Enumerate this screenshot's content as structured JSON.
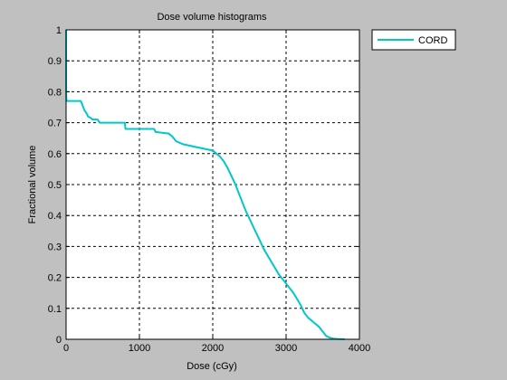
{
  "chart_data": {
    "type": "line",
    "title": "Dose volume histograms",
    "xlabel": "Dose (cGy)",
    "ylabel": "Fractional volume",
    "xlim": [
      0,
      4000
    ],
    "ylim": [
      0,
      1
    ],
    "xticks": [
      0,
      1000,
      2000,
      3000,
      4000
    ],
    "yticks": [
      0,
      0.1,
      0.2,
      0.3,
      0.4,
      0.5,
      0.6,
      0.7,
      0.8,
      0.9,
      1
    ],
    "xtick_labels": [
      "0",
      "1000",
      "2000",
      "3000",
      "4000"
    ],
    "ytick_labels": [
      "0",
      "0.1",
      "0.2",
      "0.3",
      "0.4",
      "0.5",
      "0.6",
      "0.7",
      "0.8",
      "0.9",
      "1"
    ],
    "grid": true,
    "grid_style": "dashed",
    "legend_position": "outside-top-right",
    "series": [
      {
        "name": "CORD",
        "color": "#00c8c8",
        "x": [
          0,
          0,
          0,
          5,
          200,
          210,
          250,
          280,
          300,
          340,
          360,
          390,
          430,
          460,
          800,
          810,
          1200,
          1220,
          1400,
          1450,
          1500,
          1600,
          1800,
          2000,
          2050,
          2100,
          2150,
          2200,
          2250,
          2300,
          2350,
          2400,
          2450,
          2500,
          2600,
          2700,
          2800,
          2900,
          3000,
          3050,
          3100,
          3150,
          3200,
          3250,
          3300,
          3350,
          3400,
          3450,
          3500,
          3550,
          3600,
          3650,
          3700,
          3750,
          3800
        ],
        "y": [
          1.0,
          0.9,
          0.8,
          0.77,
          0.77,
          0.765,
          0.74,
          0.73,
          0.72,
          0.715,
          0.71,
          0.71,
          0.71,
          0.7,
          0.7,
          0.68,
          0.68,
          0.67,
          0.665,
          0.655,
          0.64,
          0.63,
          0.62,
          0.61,
          0.6,
          0.59,
          0.575,
          0.555,
          0.53,
          0.505,
          0.475,
          0.445,
          0.415,
          0.39,
          0.34,
          0.29,
          0.25,
          0.21,
          0.18,
          0.165,
          0.15,
          0.13,
          0.11,
          0.085,
          0.07,
          0.06,
          0.05,
          0.04,
          0.025,
          0.01,
          0.005,
          0.002,
          0.001,
          0.0005,
          0
        ]
      }
    ]
  },
  "colors": {
    "figure_background": "#c0c0c0",
    "axes_background": "#ffffff",
    "axes_edge": "#000000",
    "grid": "#000000"
  }
}
